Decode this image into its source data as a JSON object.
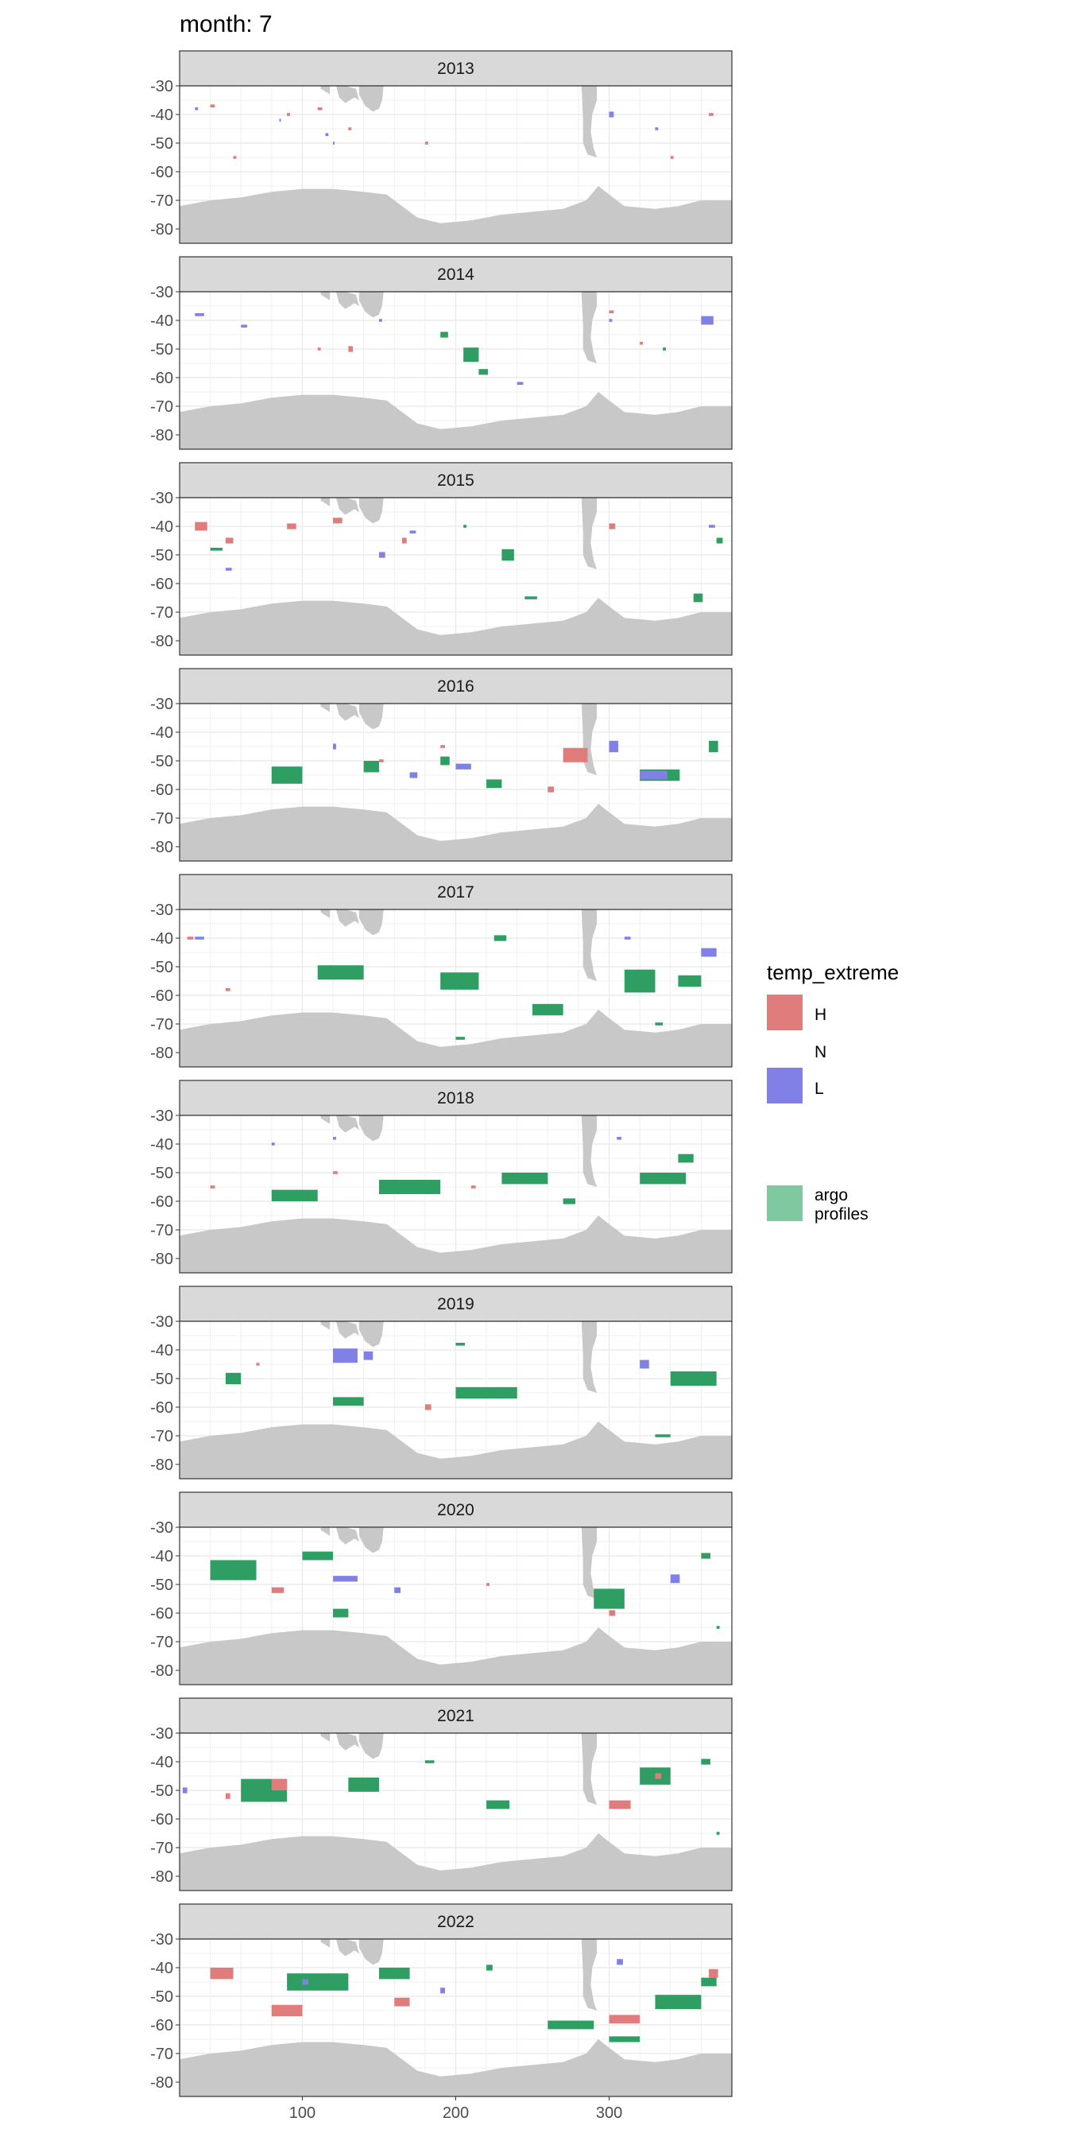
{
  "page_title": "month: 7",
  "legend": {
    "title": "temp_extreme",
    "entries": [
      {
        "key": "H",
        "label": "H",
        "color": "#E07C7C"
      },
      {
        "key": "N",
        "label": "N",
        "color": null
      },
      {
        "key": "L",
        "label": "L",
        "color": "#8080E6"
      },
      {
        "key": "argo",
        "label_lines": [
          "argo",
          "profiles"
        ],
        "color": "#80C8A0"
      }
    ]
  },
  "colors": {
    "H": "#E07C7C",
    "L": "#8080E6",
    "argo": "#2E9E62",
    "land": "#C8C8C8",
    "strip": "#D9D9D9",
    "grid": "#EBEBEB",
    "panel_border": "#333333"
  },
  "chart_data": {
    "type": "heatmap",
    "facet_by": "year",
    "x_ticks": [
      100,
      200,
      300
    ],
    "x_range": [
      20,
      380
    ],
    "y_ticks": [
      -30,
      -40,
      -50,
      -60,
      -70,
      -80
    ],
    "y_range": [
      -85,
      -30
    ],
    "panels": [
      {
        "year": "2013",
        "H": [
          [
            40,
            -37,
            3,
            1
          ],
          [
            90,
            -40,
            2,
            1
          ],
          [
            110,
            -38,
            3,
            1
          ],
          [
            130,
            -45,
            2,
            1
          ],
          [
            180,
            -50,
            2,
            1
          ],
          [
            365,
            -40,
            3,
            1
          ],
          [
            340,
            -55,
            2,
            1
          ],
          [
            55,
            -55,
            2,
            1
          ]
        ],
        "L": [
          [
            30,
            -38,
            2,
            1
          ],
          [
            85,
            -42,
            1,
            1
          ],
          [
            115,
            -47,
            2,
            1
          ],
          [
            300,
            -40,
            3,
            2
          ],
          [
            330,
            -45,
            2,
            1
          ],
          [
            120,
            -50,
            1,
            1
          ]
        ],
        "argo": []
      },
      {
        "year": "2014",
        "H": [
          [
            300,
            -37,
            3,
            1
          ],
          [
            130,
            -50,
            3,
            2
          ],
          [
            110,
            -50,
            2,
            1
          ],
          [
            320,
            -48,
            2,
            1
          ]
        ],
        "L": [
          [
            30,
            -38,
            6,
            1
          ],
          [
            60,
            -42,
            4,
            1
          ],
          [
            240,
            -62,
            4,
            1
          ],
          [
            360,
            -40,
            8,
            3
          ],
          [
            300,
            -40,
            2,
            1
          ],
          [
            150,
            -40,
            2,
            1
          ]
        ],
        "argo": [
          [
            205,
            -52,
            10,
            5
          ],
          [
            190,
            -45,
            5,
            2
          ],
          [
            215,
            -58,
            6,
            2
          ],
          [
            335,
            -50,
            2,
            1
          ]
        ]
      },
      {
        "year": "2015",
        "H": [
          [
            30,
            -40,
            8,
            3
          ],
          [
            50,
            -45,
            5,
            2
          ],
          [
            90,
            -40,
            6,
            2
          ],
          [
            120,
            -38,
            6,
            2
          ],
          [
            300,
            -40,
            4,
            2
          ],
          [
            165,
            -45,
            3,
            2
          ]
        ],
        "L": [
          [
            50,
            -55,
            4,
            1
          ],
          [
            150,
            -50,
            4,
            2
          ],
          [
            170,
            -42,
            4,
            1
          ],
          [
            365,
            -40,
            4,
            1
          ]
        ],
        "argo": [
          [
            230,
            -50,
            8,
            4
          ],
          [
            245,
            -65,
            8,
            1
          ],
          [
            205,
            -40,
            2,
            1
          ],
          [
            355,
            -65,
            6,
            3
          ],
          [
            370,
            -45,
            4,
            2
          ],
          [
            40,
            -48,
            8,
            1
          ]
        ]
      },
      {
        "year": "2016",
        "H": [
          [
            270,
            -48,
            16,
            5
          ],
          [
            260,
            -60,
            4,
            2
          ],
          [
            150,
            -50,
            3,
            1
          ],
          [
            190,
            -45,
            3,
            1
          ]
        ],
        "L": [
          [
            320,
            -55,
            18,
            3
          ],
          [
            300,
            -45,
            6,
            4
          ],
          [
            200,
            -52,
            10,
            2
          ],
          [
            170,
            -55,
            5,
            2
          ],
          [
            120,
            -45,
            2,
            2
          ]
        ],
        "argo": [
          [
            80,
            -55,
            20,
            6
          ],
          [
            140,
            -52,
            10,
            4
          ],
          [
            220,
            -58,
            10,
            3
          ],
          [
            320,
            -55,
            26,
            4
          ],
          [
            190,
            -50,
            6,
            3
          ],
          [
            365,
            -45,
            6,
            4
          ]
        ]
      },
      {
        "year": "2017",
        "H": [
          [
            50,
            -58,
            3,
            1
          ],
          [
            25,
            -40,
            4,
            1
          ]
        ],
        "L": [
          [
            360,
            -45,
            10,
            3
          ],
          [
            30,
            -40,
            6,
            1
          ],
          [
            310,
            -40,
            4,
            1
          ]
        ],
        "argo": [
          [
            110,
            -52,
            30,
            5
          ],
          [
            190,
            -55,
            25,
            6
          ],
          [
            310,
            -55,
            20,
            8
          ],
          [
            250,
            -65,
            20,
            4
          ],
          [
            345,
            -55,
            15,
            4
          ],
          [
            330,
            -70,
            5,
            1
          ],
          [
            225,
            -40,
            8,
            2
          ],
          [
            200,
            -75,
            6,
            1
          ]
        ]
      },
      {
        "year": "2018",
        "H": [
          [
            120,
            -50,
            3,
            1
          ],
          [
            210,
            -55,
            3,
            1
          ],
          [
            40,
            -55,
            3,
            1
          ]
        ],
        "L": [
          [
            305,
            -38,
            3,
            1
          ],
          [
            120,
            -38,
            2,
            1
          ],
          [
            80,
            -40,
            2,
            1
          ]
        ],
        "argo": [
          [
            80,
            -58,
            30,
            4
          ],
          [
            150,
            -55,
            40,
            5
          ],
          [
            230,
            -52,
            30,
            4
          ],
          [
            320,
            -52,
            30,
            4
          ],
          [
            345,
            -45,
            10,
            3
          ],
          [
            270,
            -60,
            8,
            2
          ]
        ]
      },
      {
        "year": "2019",
        "H": [
          [
            180,
            -60,
            4,
            2
          ],
          [
            70,
            -45,
            2,
            1
          ]
        ],
        "L": [
          [
            120,
            -42,
            16,
            5
          ],
          [
            140,
            -42,
            6,
            3
          ],
          [
            320,
            -45,
            6,
            3
          ]
        ],
        "argo": [
          [
            120,
            -58,
            20,
            3
          ],
          [
            200,
            -55,
            40,
            4
          ],
          [
            340,
            -50,
            30,
            5
          ],
          [
            330,
            -70,
            10,
            1
          ],
          [
            50,
            -50,
            10,
            4
          ],
          [
            200,
            -38,
            6,
            1
          ]
        ]
      },
      {
        "year": "2020",
        "H": [
          [
            80,
            -52,
            8,
            2
          ],
          [
            300,
            -60,
            4,
            2
          ],
          [
            220,
            -50,
            2,
            1
          ]
        ],
        "L": [
          [
            120,
            -48,
            16,
            2
          ],
          [
            340,
            -48,
            6,
            3
          ],
          [
            160,
            -52,
            4,
            2
          ]
        ],
        "argo": [
          [
            40,
            -45,
            30,
            7
          ],
          [
            100,
            -40,
            20,
            3
          ],
          [
            120,
            -60,
            10,
            3
          ],
          [
            290,
            -55,
            20,
            7
          ],
          [
            360,
            -40,
            6,
            2
          ],
          [
            370,
            -65,
            2,
            1
          ]
        ]
      },
      {
        "year": "2021",
        "H": [
          [
            80,
            -48,
            10,
            4
          ],
          [
            300,
            -55,
            14,
            3
          ],
          [
            330,
            -45,
            4,
            2
          ],
          [
            50,
            -52,
            3,
            2
          ]
        ],
        "L": [
          [
            22,
            -50,
            3,
            2
          ]
        ],
        "argo": [
          [
            60,
            -50,
            30,
            8
          ],
          [
            130,
            -48,
            20,
            5
          ],
          [
            220,
            -55,
            15,
            3
          ],
          [
            320,
            -45,
            20,
            6
          ],
          [
            360,
            -40,
            6,
            2
          ],
          [
            370,
            -65,
            2,
            1
          ],
          [
            180,
            -40,
            6,
            1
          ]
        ]
      },
      {
        "year": "2022",
        "H": [
          [
            40,
            -42,
            15,
            4
          ],
          [
            80,
            -55,
            20,
            4
          ],
          [
            160,
            -52,
            10,
            3
          ],
          [
            300,
            -58,
            20,
            3
          ],
          [
            365,
            -42,
            6,
            3
          ]
        ],
        "L": [
          [
            100,
            -45,
            4,
            2
          ],
          [
            190,
            -48,
            3,
            2
          ],
          [
            305,
            -38,
            4,
            2
          ]
        ],
        "argo": [
          [
            90,
            -45,
            40,
            6
          ],
          [
            150,
            -42,
            20,
            4
          ],
          [
            260,
            -60,
            30,
            3
          ],
          [
            330,
            -52,
            30,
            5
          ],
          [
            300,
            -65,
            20,
            2
          ],
          [
            360,
            -45,
            10,
            3
          ],
          [
            220,
            -40,
            4,
            2
          ]
        ]
      }
    ]
  }
}
